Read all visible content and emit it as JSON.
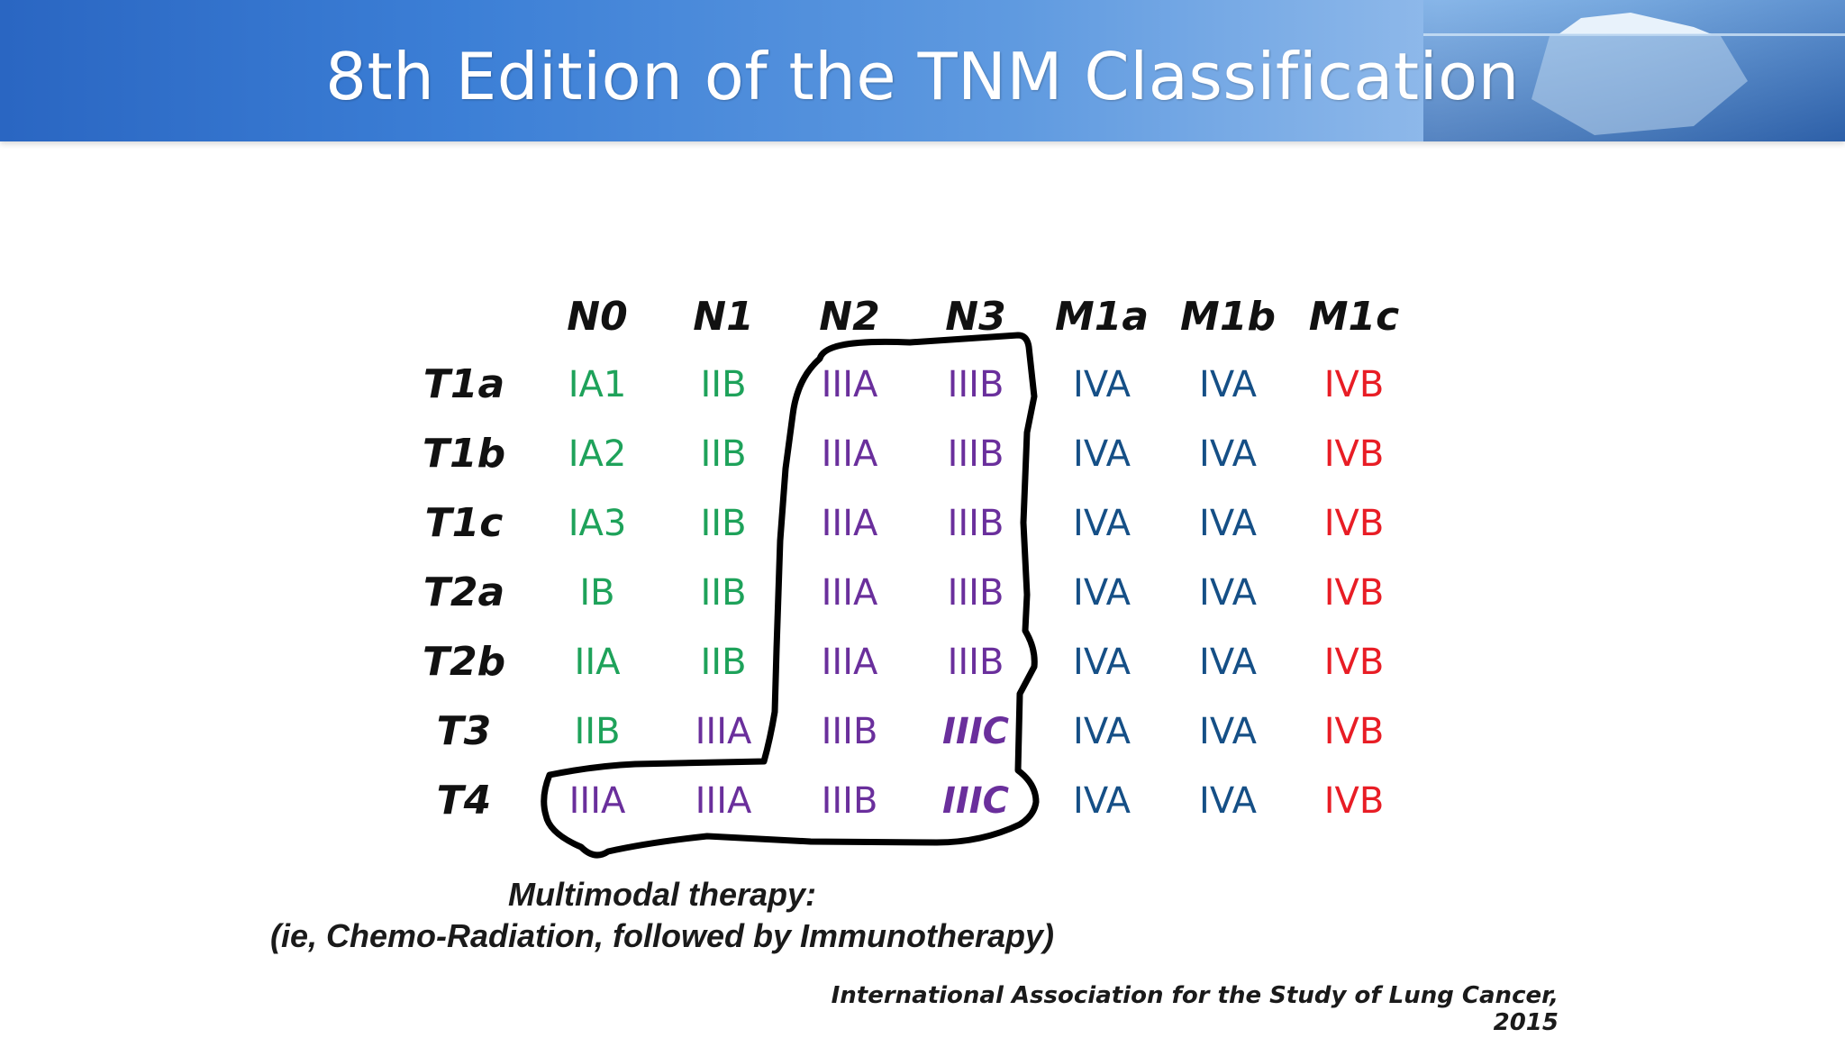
{
  "title": "8th Edition of the TNM Classification",
  "columns": [
    "N0",
    "N1",
    "N2",
    "N3",
    "M1a",
    "M1b",
    "M1c"
  ],
  "rows": [
    {
      "label": "T1a",
      "cells": [
        {
          "text": "IA1",
          "color": "green"
        },
        {
          "text": "IIB",
          "color": "green"
        },
        {
          "text": "IIIA",
          "color": "purple"
        },
        {
          "text": "IIIB",
          "color": "purple"
        },
        {
          "text": "IVA",
          "color": "blue"
        },
        {
          "text": "IVA",
          "color": "blue"
        },
        {
          "text": "IVB",
          "color": "red"
        }
      ]
    },
    {
      "label": "T1b",
      "cells": [
        {
          "text": "IA2",
          "color": "green"
        },
        {
          "text": "IIB",
          "color": "green"
        },
        {
          "text": "IIIA",
          "color": "purple"
        },
        {
          "text": "IIIB",
          "color": "purple"
        },
        {
          "text": "IVA",
          "color": "blue"
        },
        {
          "text": "IVA",
          "color": "blue"
        },
        {
          "text": "IVB",
          "color": "red"
        }
      ]
    },
    {
      "label": "T1c",
      "cells": [
        {
          "text": "IA3",
          "color": "green"
        },
        {
          "text": "IIB",
          "color": "green"
        },
        {
          "text": "IIIA",
          "color": "purple"
        },
        {
          "text": "IIIB",
          "color": "purple"
        },
        {
          "text": "IVA",
          "color": "blue"
        },
        {
          "text": "IVA",
          "color": "blue"
        },
        {
          "text": "IVB",
          "color": "red"
        }
      ]
    },
    {
      "label": "T2a",
      "cells": [
        {
          "text": "IB",
          "color": "green"
        },
        {
          "text": "IIB",
          "color": "green"
        },
        {
          "text": "IIIA",
          "color": "purple"
        },
        {
          "text": "IIIB",
          "color": "purple"
        },
        {
          "text": "IVA",
          "color": "blue"
        },
        {
          "text": "IVA",
          "color": "blue"
        },
        {
          "text": "IVB",
          "color": "red"
        }
      ]
    },
    {
      "label": "T2b",
      "cells": [
        {
          "text": "IIA",
          "color": "green"
        },
        {
          "text": "IIB",
          "color": "green"
        },
        {
          "text": "IIIA",
          "color": "purple"
        },
        {
          "text": "IIIB",
          "color": "purple"
        },
        {
          "text": "IVA",
          "color": "blue"
        },
        {
          "text": "IVA",
          "color": "blue"
        },
        {
          "text": "IVB",
          "color": "red"
        }
      ]
    },
    {
      "label": "T3",
      "cells": [
        {
          "text": "IIB",
          "color": "green"
        },
        {
          "text": "IIIA",
          "color": "purple"
        },
        {
          "text": "IIIB",
          "color": "purple"
        },
        {
          "text": "IIIC",
          "color": "purple",
          "italic": true
        },
        {
          "text": "IVA",
          "color": "blue"
        },
        {
          "text": "IVA",
          "color": "blue"
        },
        {
          "text": "IVB",
          "color": "red"
        }
      ]
    },
    {
      "label": "T4",
      "cells": [
        {
          "text": "IIIA",
          "color": "purple"
        },
        {
          "text": "IIIA",
          "color": "purple"
        },
        {
          "text": "IIIB",
          "color": "purple"
        },
        {
          "text": "IIIC",
          "color": "purple",
          "italic": true
        },
        {
          "text": "IVA",
          "color": "blue"
        },
        {
          "text": "IVA",
          "color": "blue"
        },
        {
          "text": "IVB",
          "color": "red"
        }
      ]
    }
  ],
  "colors": {
    "green": "#1ea25a",
    "purple": "#6a2f9c",
    "blue": "#154f86",
    "red": "#e81d25"
  },
  "note": {
    "line1": "Multimodal therapy:",
    "line2": "(ie, Chemo-Radiation, followed by Immunotherapy)"
  },
  "citation": "International Association for the Study of Lung Cancer, 2015"
}
